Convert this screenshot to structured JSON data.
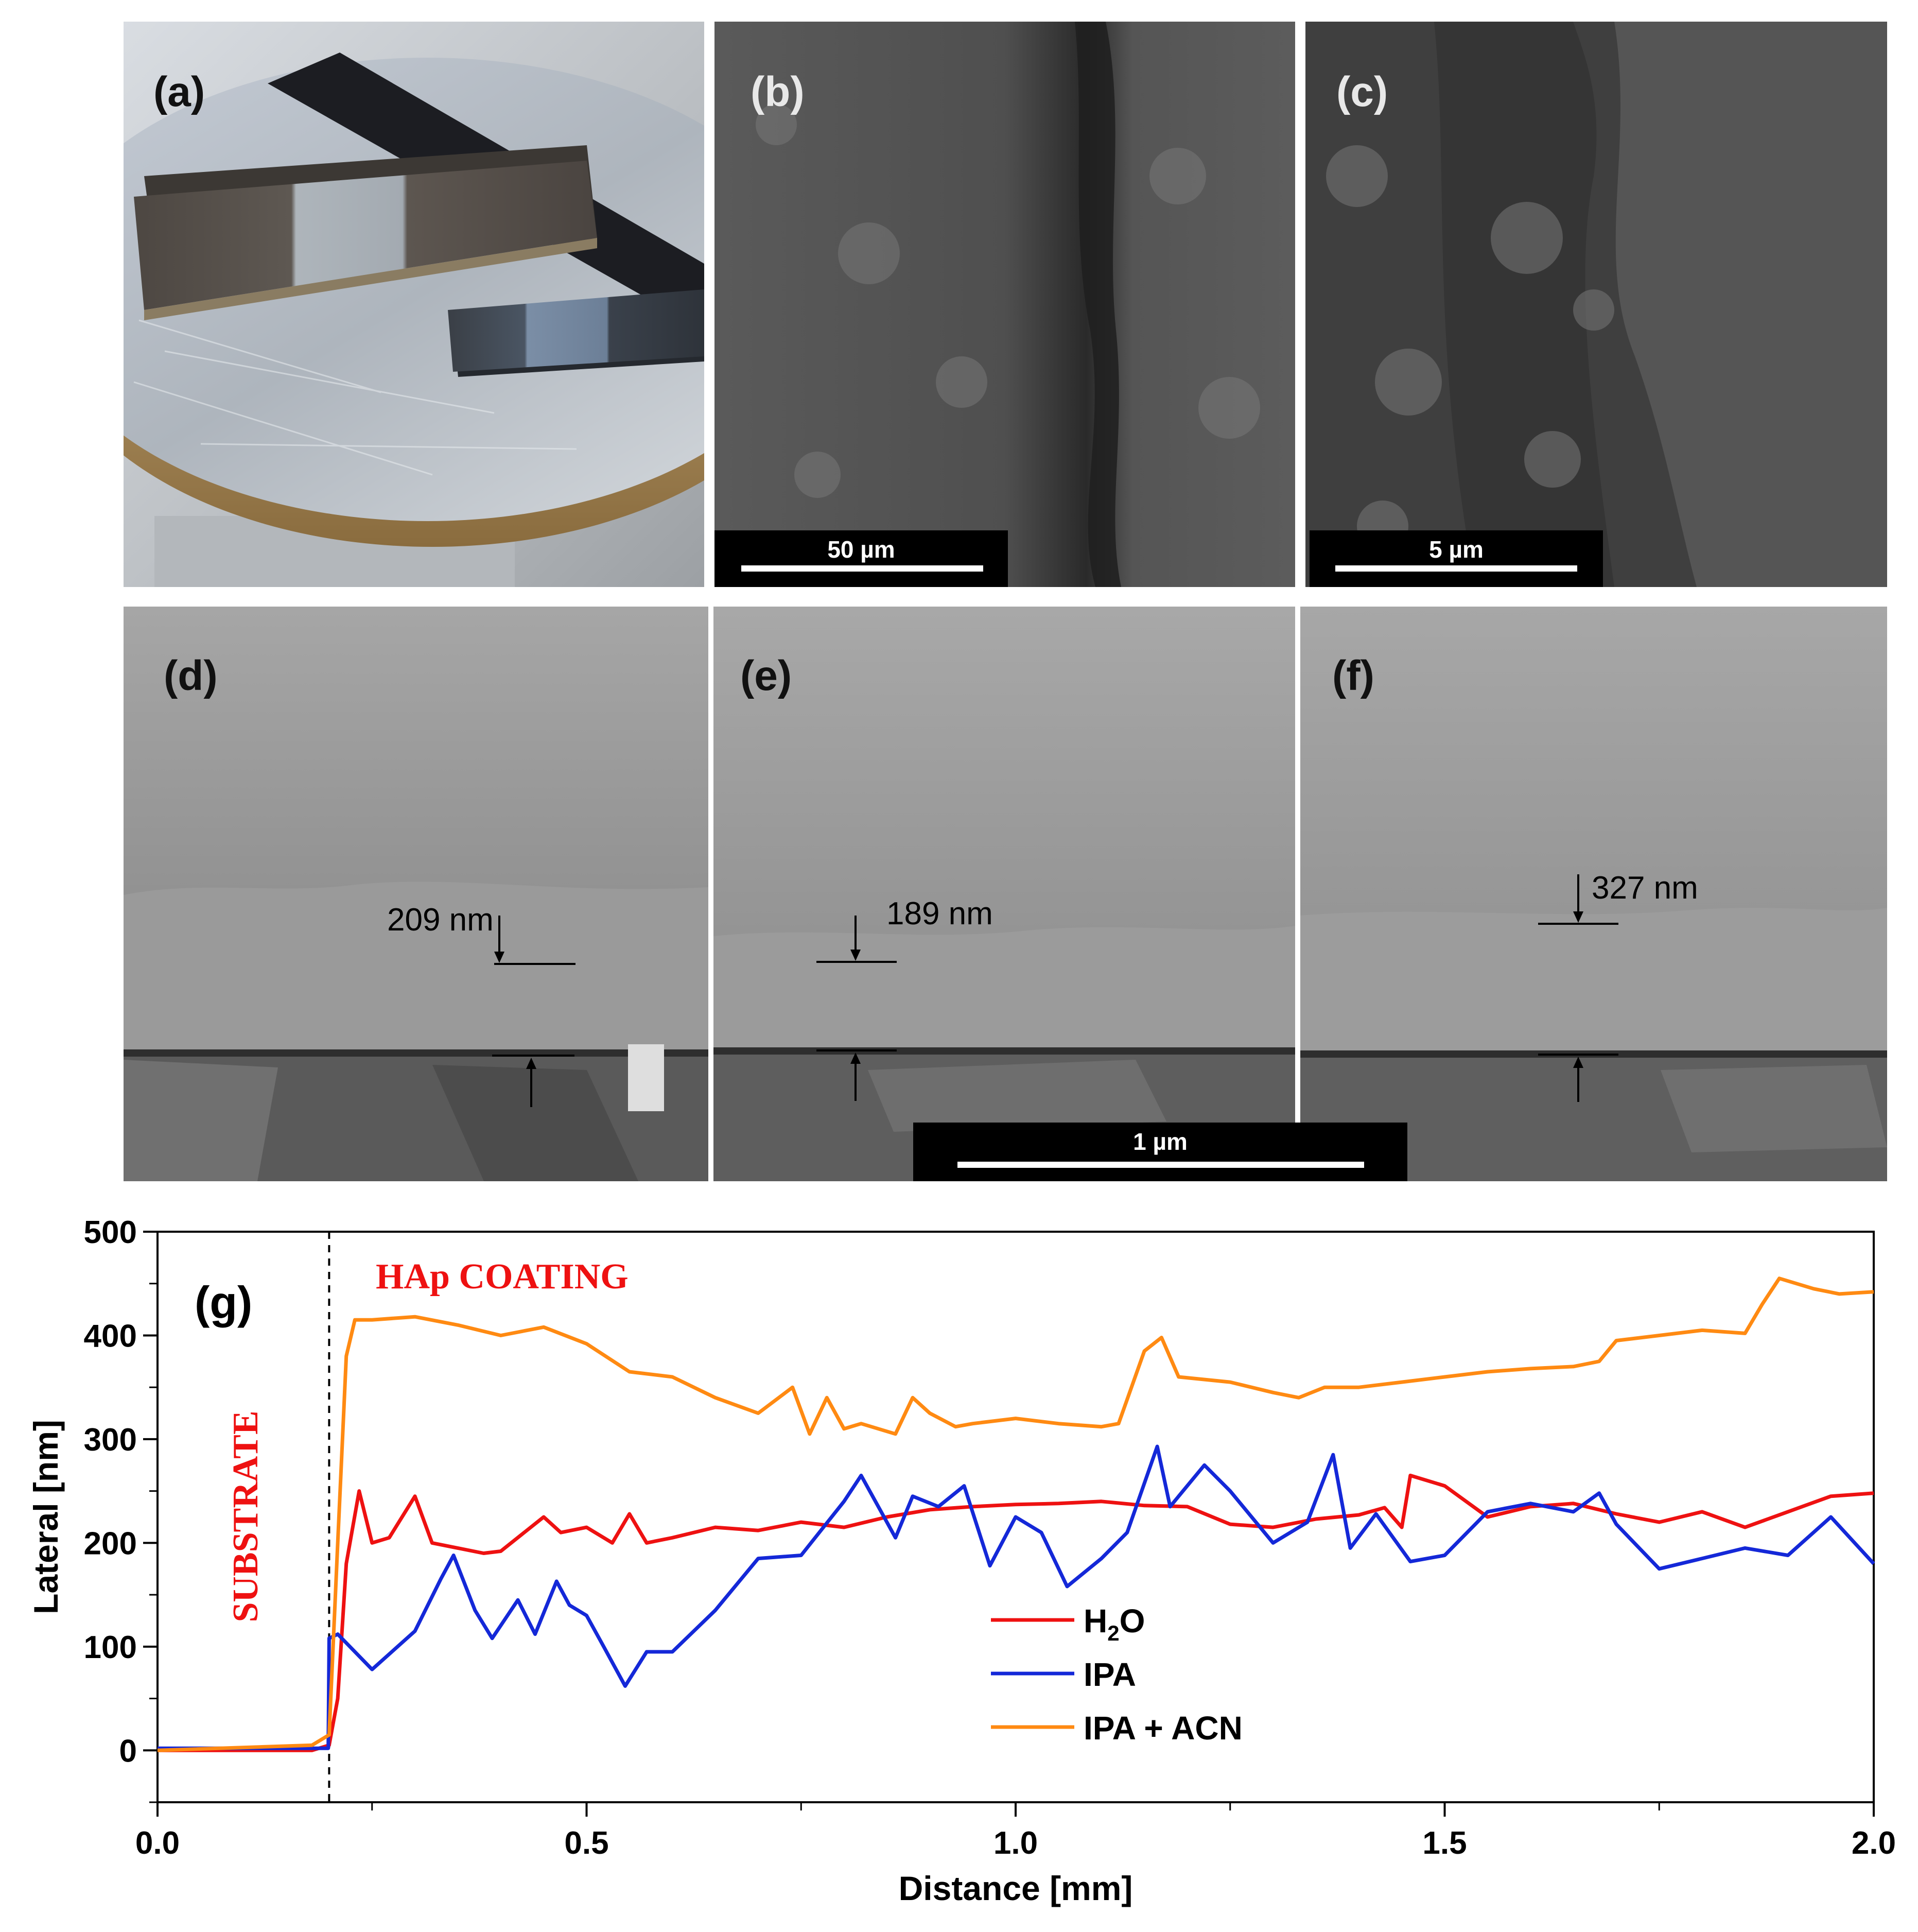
{
  "panels": {
    "a": {
      "label": "(a)"
    },
    "b": {
      "label": "(b)",
      "scale_bar": "50 µm"
    },
    "c": {
      "label": "(c)",
      "scale_bar": "5 µm"
    },
    "d": {
      "label": "(d)",
      "thickness": "209 nm"
    },
    "e": {
      "label": "(e)",
      "thickness": "189 nm"
    },
    "f": {
      "label": "(f)",
      "thickness": "327 nm"
    },
    "def_scale_bar": "1 µm",
    "g": {
      "label": "(g)"
    }
  },
  "chart_data": {
    "type": "line",
    "panel_label": "(g)",
    "xlabel": "Distance [mm]",
    "ylabel": "Lateral [nm]",
    "xlim": [
      0,
      2.0
    ],
    "ylim": [
      -50,
      500
    ],
    "xticks": [
      0.0,
      0.5,
      1.0,
      1.5,
      2.0
    ],
    "xtick_labels": [
      "0.0",
      "0.5",
      "1.0",
      "1.5",
      "2.0"
    ],
    "yticks": [
      0,
      100,
      200,
      300,
      400,
      500
    ],
    "ytick_labels": [
      "0",
      "100",
      "200",
      "300",
      "400",
      "500"
    ],
    "grid": false,
    "legend_position": "center",
    "annotations": {
      "coating": "HAp COATING",
      "substrate": "SUBSTRATE",
      "boundary_x": 0.2
    },
    "series": [
      {
        "name": "H2O",
        "legend_text": "H",
        "legend_sub": "2",
        "legend_tail": "O",
        "color": "#ee1111",
        "x": [
          0,
          0.18,
          0.2,
          0.21,
          0.22,
          0.235,
          0.25,
          0.27,
          0.3,
          0.32,
          0.35,
          0.38,
          0.4,
          0.45,
          0.47,
          0.5,
          0.53,
          0.55,
          0.57,
          0.6,
          0.65,
          0.7,
          0.75,
          0.8,
          0.85,
          0.9,
          0.95,
          1.0,
          1.05,
          1.1,
          1.15,
          1.2,
          1.25,
          1.3,
          1.35,
          1.4,
          1.43,
          1.45,
          1.46,
          1.5,
          1.55,
          1.6,
          1.65,
          1.7,
          1.75,
          1.8,
          1.85,
          1.9,
          1.95,
          2.0
        ],
        "y": [
          0,
          0,
          5,
          50,
          180,
          250,
          200,
          205,
          245,
          200,
          195,
          190,
          192,
          225,
          210,
          215,
          200,
          228,
          200,
          205,
          215,
          212,
          220,
          215,
          225,
          232,
          235,
          237,
          238,
          240,
          236,
          235,
          218,
          215,
          223,
          227,
          234,
          215,
          265,
          255,
          225,
          235,
          238,
          228,
          220,
          230,
          215,
          230,
          245,
          248
        ]
      },
      {
        "name": "IPA",
        "color": "#1428d8",
        "x": [
          0,
          0.199,
          0.2,
          0.21,
          0.25,
          0.3,
          0.33,
          0.345,
          0.37,
          0.39,
          0.42,
          0.44,
          0.465,
          0.48,
          0.5,
          0.52,
          0.545,
          0.57,
          0.6,
          0.65,
          0.7,
          0.75,
          0.8,
          0.82,
          0.86,
          0.88,
          0.91,
          0.94,
          0.97,
          1.0,
          1.03,
          1.06,
          1.1,
          1.13,
          1.165,
          1.18,
          1.22,
          1.25,
          1.3,
          1.34,
          1.37,
          1.39,
          1.42,
          1.46,
          1.5,
          1.55,
          1.6,
          1.65,
          1.68,
          1.7,
          1.75,
          1.8,
          1.85,
          1.9,
          1.95,
          2.0
        ],
        "y": [
          2,
          2,
          108,
          112,
          78,
          115,
          165,
          188,
          135,
          108,
          145,
          112,
          163,
          140,
          130,
          100,
          62,
          95,
          95,
          135,
          185,
          188,
          240,
          265,
          205,
          245,
          235,
          255,
          178,
          225,
          210,
          158,
          185,
          210,
          293,
          235,
          275,
          250,
          200,
          220,
          285,
          195,
          228,
          182,
          188,
          230,
          238,
          230,
          248,
          218,
          175,
          185,
          195,
          188,
          225,
          180
        ]
      },
      {
        "name": "IPA + ACN",
        "color": "#ff8a12",
        "x": [
          0,
          0.18,
          0.2,
          0.21,
          0.22,
          0.23,
          0.25,
          0.3,
          0.35,
          0.4,
          0.45,
          0.5,
          0.55,
          0.6,
          0.65,
          0.7,
          0.74,
          0.76,
          0.78,
          0.8,
          0.82,
          0.86,
          0.88,
          0.9,
          0.93,
          0.95,
          1.0,
          1.05,
          1.1,
          1.12,
          1.15,
          1.17,
          1.19,
          1.25,
          1.3,
          1.33,
          1.36,
          1.4,
          1.45,
          1.5,
          1.55,
          1.6,
          1.65,
          1.68,
          1.7,
          1.75,
          1.8,
          1.85,
          1.87,
          1.89,
          1.93,
          1.96,
          2.0
        ],
        "y": [
          0,
          5,
          15,
          200,
          380,
          415,
          415,
          418,
          410,
          400,
          408,
          392,
          365,
          360,
          340,
          325,
          350,
          305,
          340,
          310,
          315,
          305,
          340,
          325,
          312,
          315,
          320,
          315,
          312,
          315,
          385,
          398,
          360,
          355,
          345,
          340,
          350,
          350,
          355,
          360,
          365,
          368,
          370,
          375,
          395,
          400,
          405,
          402,
          430,
          455,
          445,
          440,
          442
        ]
      }
    ]
  }
}
